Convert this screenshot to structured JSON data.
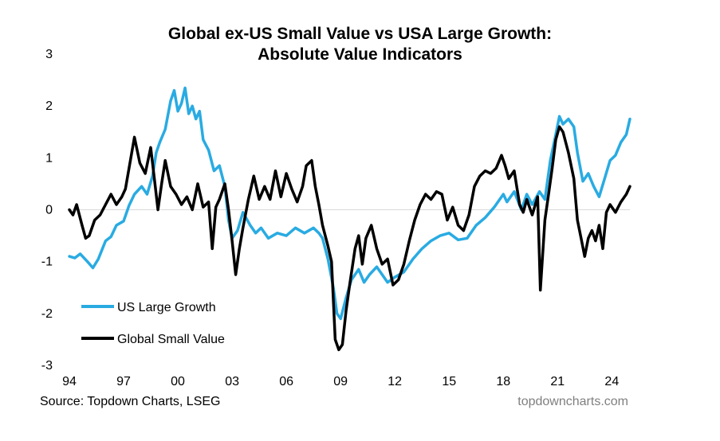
{
  "chart_data": {
    "type": "line",
    "title_line1": "Global ex-US Small Value vs USA Large Growth:",
    "title_line2": "Absolute Value Indicators",
    "xlabel": "",
    "ylabel": "",
    "xlim": [
      1994,
      2025
    ],
    "ylim": [
      -3,
      3
    ],
    "y_ticks": [
      "3",
      "2",
      "1",
      "0",
      "-1",
      "-2",
      "-3"
    ],
    "y_tick_values": [
      3,
      2,
      1,
      0,
      -1,
      -2,
      -3
    ],
    "x_ticks": [
      "94",
      "97",
      "00",
      "03",
      "06",
      "09",
      "12",
      "15",
      "18",
      "21",
      "24"
    ],
    "x_tick_values": [
      1994,
      1997,
      2000,
      2003,
      2006,
      2009,
      2012,
      2015,
      2018,
      2021,
      2024
    ],
    "grid": false,
    "zero_line": true,
    "legend_position": "bottom-left",
    "series": [
      {
        "name": "US Large Growth",
        "color": "#29abe2",
        "points": [
          [
            1994.0,
            -0.9
          ],
          [
            1994.3,
            -0.93
          ],
          [
            1994.6,
            -0.85
          ],
          [
            1995.0,
            -1.0
          ],
          [
            1995.3,
            -1.12
          ],
          [
            1995.6,
            -0.95
          ],
          [
            1996.0,
            -0.6
          ],
          [
            1996.3,
            -0.52
          ],
          [
            1996.6,
            -0.3
          ],
          [
            1997.0,
            -0.22
          ],
          [
            1997.3,
            0.08
          ],
          [
            1997.6,
            0.3
          ],
          [
            1998.0,
            0.45
          ],
          [
            1998.3,
            0.3
          ],
          [
            1998.6,
            0.65
          ],
          [
            1998.8,
            1.1
          ],
          [
            1999.0,
            1.3
          ],
          [
            1999.3,
            1.55
          ],
          [
            1999.6,
            2.1
          ],
          [
            1999.8,
            2.3
          ],
          [
            2000.0,
            1.9
          ],
          [
            2000.2,
            2.05
          ],
          [
            2000.4,
            2.35
          ],
          [
            2000.6,
            1.85
          ],
          [
            2000.8,
            2.0
          ],
          [
            2001.0,
            1.75
          ],
          [
            2001.2,
            1.9
          ],
          [
            2001.4,
            1.35
          ],
          [
            2001.7,
            1.15
          ],
          [
            2002.0,
            0.75
          ],
          [
            2002.3,
            0.85
          ],
          [
            2002.6,
            0.45
          ],
          [
            2002.8,
            -0.2
          ],
          [
            2003.0,
            -0.55
          ],
          [
            2003.3,
            -0.4
          ],
          [
            2003.6,
            -0.05
          ],
          [
            2004.0,
            -0.3
          ],
          [
            2004.3,
            -0.45
          ],
          [
            2004.6,
            -0.35
          ],
          [
            2005.0,
            -0.55
          ],
          [
            2005.5,
            -0.45
          ],
          [
            2006.0,
            -0.5
          ],
          [
            2006.5,
            -0.35
          ],
          [
            2007.0,
            -0.45
          ],
          [
            2007.5,
            -0.35
          ],
          [
            2007.8,
            -0.45
          ],
          [
            2008.0,
            -0.55
          ],
          [
            2008.3,
            -0.95
          ],
          [
            2008.6,
            -1.5
          ],
          [
            2008.8,
            -2.0
          ],
          [
            2009.0,
            -2.1
          ],
          [
            2009.3,
            -1.7
          ],
          [
            2009.6,
            -1.35
          ],
          [
            2010.0,
            -1.15
          ],
          [
            2010.3,
            -1.4
          ],
          [
            2010.6,
            -1.25
          ],
          [
            2011.0,
            -1.1
          ],
          [
            2011.3,
            -1.25
          ],
          [
            2011.6,
            -1.4
          ],
          [
            2012.0,
            -1.3
          ],
          [
            2012.5,
            -1.2
          ],
          [
            2013.0,
            -0.95
          ],
          [
            2013.5,
            -0.75
          ],
          [
            2014.0,
            -0.6
          ],
          [
            2014.5,
            -0.5
          ],
          [
            2015.0,
            -0.45
          ],
          [
            2015.5,
            -0.58
          ],
          [
            2016.0,
            -0.55
          ],
          [
            2016.5,
            -0.3
          ],
          [
            2017.0,
            -0.15
          ],
          [
            2017.5,
            0.05
          ],
          [
            2018.0,
            0.3
          ],
          [
            2018.2,
            0.15
          ],
          [
            2018.6,
            0.35
          ],
          [
            2019.0,
            0.0
          ],
          [
            2019.3,
            0.3
          ],
          [
            2019.6,
            0.1
          ],
          [
            2020.0,
            0.35
          ],
          [
            2020.3,
            0.2
          ],
          [
            2020.6,
            0.95
          ],
          [
            2020.9,
            1.45
          ],
          [
            2021.1,
            1.8
          ],
          [
            2021.3,
            1.65
          ],
          [
            2021.6,
            1.75
          ],
          [
            2021.9,
            1.6
          ],
          [
            2022.1,
            1.1
          ],
          [
            2022.4,
            0.55
          ],
          [
            2022.7,
            0.7
          ],
          [
            2023.0,
            0.45
          ],
          [
            2023.3,
            0.25
          ],
          [
            2023.6,
            0.6
          ],
          [
            2023.9,
            0.95
          ],
          [
            2024.2,
            1.05
          ],
          [
            2024.5,
            1.3
          ],
          [
            2024.8,
            1.45
          ],
          [
            2025.0,
            1.75
          ]
        ]
      },
      {
        "name": "Global Small Value",
        "color": "#000000",
        "points": [
          [
            1994.0,
            0.0
          ],
          [
            1994.2,
            -0.1
          ],
          [
            1994.4,
            0.1
          ],
          [
            1994.7,
            -0.3
          ],
          [
            1994.9,
            -0.55
          ],
          [
            1995.1,
            -0.5
          ],
          [
            1995.4,
            -0.2
          ],
          [
            1995.7,
            -0.1
          ],
          [
            1996.0,
            0.1
          ],
          [
            1996.3,
            0.3
          ],
          [
            1996.6,
            0.1
          ],
          [
            1996.9,
            0.25
          ],
          [
            1997.1,
            0.4
          ],
          [
            1997.4,
            1.0
          ],
          [
            1997.6,
            1.4
          ],
          [
            1997.9,
            0.9
          ],
          [
            1998.2,
            0.7
          ],
          [
            1998.5,
            1.2
          ],
          [
            1998.7,
            0.6
          ],
          [
            1998.9,
            0.0
          ],
          [
            1999.1,
            0.5
          ],
          [
            1999.3,
            0.95
          ],
          [
            1999.6,
            0.45
          ],
          [
            1999.9,
            0.3
          ],
          [
            2000.2,
            0.1
          ],
          [
            2000.5,
            0.25
          ],
          [
            2000.8,
            0.0
          ],
          [
            2001.1,
            0.5
          ],
          [
            2001.4,
            0.05
          ],
          [
            2001.7,
            0.15
          ],
          [
            2001.9,
            -0.75
          ],
          [
            2002.1,
            0.05
          ],
          [
            2002.3,
            0.2
          ],
          [
            2002.6,
            0.5
          ],
          [
            2002.8,
            0.0
          ],
          [
            2003.0,
            -0.6
          ],
          [
            2003.2,
            -1.25
          ],
          [
            2003.4,
            -0.75
          ],
          [
            2003.6,
            -0.35
          ],
          [
            2003.9,
            0.2
          ],
          [
            2004.2,
            0.65
          ],
          [
            2004.5,
            0.2
          ],
          [
            2004.8,
            0.45
          ],
          [
            2005.1,
            0.2
          ],
          [
            2005.4,
            0.75
          ],
          [
            2005.7,
            0.25
          ],
          [
            2006.0,
            0.7
          ],
          [
            2006.3,
            0.4
          ],
          [
            2006.6,
            0.15
          ],
          [
            2006.9,
            0.45
          ],
          [
            2007.1,
            0.85
          ],
          [
            2007.4,
            0.95
          ],
          [
            2007.6,
            0.45
          ],
          [
            2007.8,
            0.1
          ],
          [
            2008.0,
            -0.3
          ],
          [
            2008.3,
            -0.7
          ],
          [
            2008.5,
            -1.0
          ],
          [
            2008.7,
            -2.5
          ],
          [
            2008.9,
            -2.7
          ],
          [
            2009.1,
            -2.6
          ],
          [
            2009.3,
            -1.95
          ],
          [
            2009.5,
            -1.45
          ],
          [
            2009.8,
            -0.75
          ],
          [
            2010.0,
            -0.5
          ],
          [
            2010.2,
            -1.05
          ],
          [
            2010.4,
            -0.55
          ],
          [
            2010.7,
            -0.3
          ],
          [
            2011.0,
            -0.75
          ],
          [
            2011.3,
            -1.05
          ],
          [
            2011.6,
            -0.95
          ],
          [
            2011.9,
            -1.45
          ],
          [
            2012.2,
            -1.35
          ],
          [
            2012.5,
            -1.05
          ],
          [
            2012.8,
            -0.6
          ],
          [
            2013.1,
            -0.2
          ],
          [
            2013.4,
            0.1
          ],
          [
            2013.7,
            0.3
          ],
          [
            2014.0,
            0.2
          ],
          [
            2014.3,
            0.35
          ],
          [
            2014.6,
            0.3
          ],
          [
            2014.9,
            -0.2
          ],
          [
            2015.2,
            0.05
          ],
          [
            2015.5,
            -0.3
          ],
          [
            2015.8,
            -0.4
          ],
          [
            2016.1,
            -0.1
          ],
          [
            2016.4,
            0.45
          ],
          [
            2016.7,
            0.65
          ],
          [
            2017.0,
            0.75
          ],
          [
            2017.3,
            0.7
          ],
          [
            2017.6,
            0.8
          ],
          [
            2017.9,
            1.05
          ],
          [
            2018.1,
            0.85
          ],
          [
            2018.3,
            0.6
          ],
          [
            2018.6,
            0.75
          ],
          [
            2018.9,
            0.1
          ],
          [
            2019.1,
            -0.05
          ],
          [
            2019.3,
            0.2
          ],
          [
            2019.6,
            -0.1
          ],
          [
            2019.9,
            0.25
          ],
          [
            2020.05,
            -1.55
          ],
          [
            2020.3,
            -0.2
          ],
          [
            2020.5,
            0.3
          ],
          [
            2020.7,
            0.8
          ],
          [
            2020.9,
            1.35
          ],
          [
            2021.1,
            1.6
          ],
          [
            2021.3,
            1.5
          ],
          [
            2021.6,
            1.1
          ],
          [
            2021.9,
            0.6
          ],
          [
            2022.1,
            -0.2
          ],
          [
            2022.3,
            -0.55
          ],
          [
            2022.5,
            -0.9
          ],
          [
            2022.7,
            -0.55
          ],
          [
            2022.9,
            -0.4
          ],
          [
            2023.1,
            -0.6
          ],
          [
            2023.3,
            -0.3
          ],
          [
            2023.5,
            -0.75
          ],
          [
            2023.7,
            -0.05
          ],
          [
            2023.9,
            0.1
          ],
          [
            2024.2,
            -0.05
          ],
          [
            2024.5,
            0.15
          ],
          [
            2024.8,
            0.3
          ],
          [
            2025.0,
            0.45
          ]
        ]
      }
    ]
  },
  "source_text": "Source: Topdown Charts, LSEG",
  "watermark_text": "topdowncharts.com"
}
